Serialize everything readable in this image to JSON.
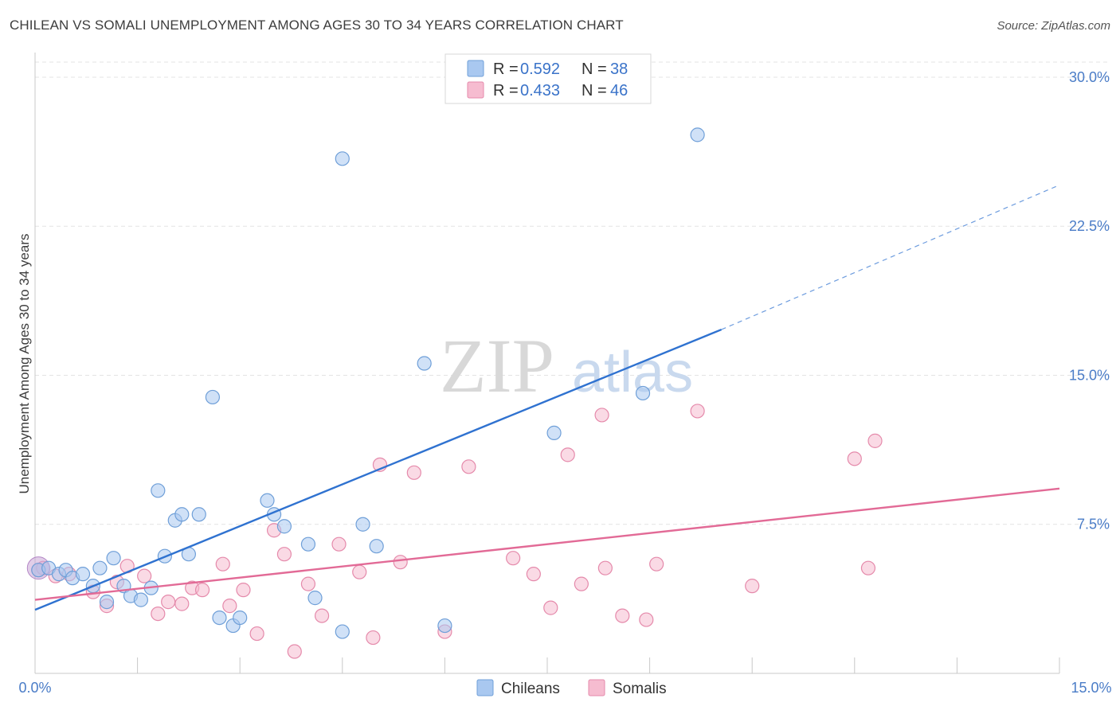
{
  "header": {
    "title": "CHILEAN VS SOMALI UNEMPLOYMENT AMONG AGES 30 TO 34 YEARS CORRELATION CHART",
    "source": "Source: ZipAtlas.com"
  },
  "watermark": {
    "zip": "ZIP",
    "atlas": "atlas"
  },
  "colors": {
    "chileans_fill": "#a9c8f0",
    "chileans_stroke": "#6f9fd8",
    "chileans_line": "#2f72d0",
    "somalis_fill": "#f6bcd0",
    "somalis_stroke": "#e58aab",
    "somalis_line": "#e26a96",
    "tick_text": "#4a7cc7",
    "grid": "#e3e3e3"
  },
  "legend": {
    "rows": [
      {
        "r_label": "R =",
        "r_value": "0.592",
        "n_label": "N =",
        "n_value": "38",
        "series": "chileans"
      },
      {
        "r_label": "R =",
        "r_value": "0.433",
        "n_label": "N =",
        "n_value": "46",
        "series": "somalis"
      }
    ]
  },
  "bottom_legend": {
    "chileans": "Chileans",
    "somalis": "Somalis"
  },
  "chart_data": {
    "type": "scatter",
    "title": "CHILEAN VS SOMALI UNEMPLOYMENT AMONG AGES 30 TO 34 YEARS CORRELATION CHART",
    "xlabel": "",
    "ylabel": "Unemployment Among Ages 30 to 34 years",
    "xlim": [
      0,
      15
    ],
    "ylim": [
      0,
      31
    ],
    "x_tick_labels": {
      "left": "0.0%",
      "right": "15.0%"
    },
    "x_minor_ticks": [
      1.5,
      3,
      4.5,
      6,
      7.5,
      9,
      10.5,
      12,
      13.5,
      15
    ],
    "y_ticks": [
      {
        "value": 7.5,
        "label": "7.5%"
      },
      {
        "value": 15.0,
        "label": "15.0%"
      },
      {
        "value": 22.5,
        "label": "22.5%"
      },
      {
        "value": 30.0,
        "label": "30.0%"
      }
    ],
    "grid": true,
    "series": [
      {
        "name": "Chileans",
        "r": 0.592,
        "n": 38,
        "trend": {
          "x0": 0,
          "y0": 3.2,
          "x1": 10.05,
          "y1": 17.3,
          "dashed_to_x": 14.95,
          "dashed_to_y": 24.5
        },
        "points": [
          [
            0.05,
            5.2
          ],
          [
            0.2,
            5.3
          ],
          [
            0.35,
            5.0
          ],
          [
            0.45,
            5.2
          ],
          [
            0.55,
            4.8
          ],
          [
            0.7,
            5.0
          ],
          [
            0.85,
            4.4
          ],
          [
            0.95,
            5.3
          ],
          [
            1.05,
            3.6
          ],
          [
            1.15,
            5.8
          ],
          [
            1.3,
            4.4
          ],
          [
            1.4,
            3.9
          ],
          [
            1.55,
            3.7
          ],
          [
            1.7,
            4.3
          ],
          [
            1.8,
            9.2
          ],
          [
            1.9,
            5.9
          ],
          [
            2.05,
            7.7
          ],
          [
            2.15,
            8.0
          ],
          [
            2.25,
            6.0
          ],
          [
            2.4,
            8.0
          ],
          [
            2.6,
            13.9
          ],
          [
            2.7,
            2.8
          ],
          [
            2.9,
            2.4
          ],
          [
            3.0,
            2.8
          ],
          [
            3.4,
            8.7
          ],
          [
            3.5,
            8.0
          ],
          [
            3.65,
            7.4
          ],
          [
            4.0,
            6.5
          ],
          [
            4.1,
            3.8
          ],
          [
            4.5,
            2.1
          ],
          [
            4.5,
            25.9
          ],
          [
            4.8,
            7.5
          ],
          [
            5.0,
            6.4
          ],
          [
            5.7,
            15.6
          ],
          [
            6.0,
            2.4
          ],
          [
            7.6,
            12.1
          ],
          [
            8.9,
            14.1
          ],
          [
            9.7,
            27.1
          ]
        ]
      },
      {
        "name": "Somalis",
        "r": 0.433,
        "n": 46,
        "trend": {
          "x0": 0,
          "y0": 3.7,
          "x1": 15.0,
          "y1": 9.3
        },
        "points": [
          [
            0.05,
            5.2
          ],
          [
            0.3,
            4.9
          ],
          [
            0.5,
            5.0
          ],
          [
            0.85,
            4.1
          ],
          [
            1.05,
            3.4
          ],
          [
            1.2,
            4.6
          ],
          [
            1.35,
            5.4
          ],
          [
            1.6,
            4.9
          ],
          [
            1.8,
            3.0
          ],
          [
            1.95,
            3.6
          ],
          [
            2.15,
            3.5
          ],
          [
            2.3,
            4.3
          ],
          [
            2.45,
            4.2
          ],
          [
            2.75,
            5.5
          ],
          [
            2.85,
            3.4
          ],
          [
            3.05,
            4.2
          ],
          [
            3.25,
            2.0
          ],
          [
            3.5,
            7.2
          ],
          [
            3.65,
            6.0
          ],
          [
            3.8,
            1.1
          ],
          [
            4.0,
            4.5
          ],
          [
            4.2,
            2.9
          ],
          [
            4.45,
            6.5
          ],
          [
            4.75,
            5.1
          ],
          [
            4.95,
            1.8
          ],
          [
            5.05,
            10.5
          ],
          [
            5.35,
            5.6
          ],
          [
            5.55,
            10.1
          ],
          [
            6.0,
            2.1
          ],
          [
            6.35,
            10.4
          ],
          [
            7.0,
            5.8
          ],
          [
            7.3,
            5.0
          ],
          [
            7.55,
            3.3
          ],
          [
            7.8,
            11.0
          ],
          [
            8.0,
            4.5
          ],
          [
            8.3,
            13.0
          ],
          [
            8.35,
            5.3
          ],
          [
            8.6,
            2.9
          ],
          [
            8.95,
            2.7
          ],
          [
            9.1,
            5.5
          ],
          [
            9.7,
            13.2
          ],
          [
            10.5,
            4.4
          ],
          [
            12.0,
            10.8
          ],
          [
            12.2,
            5.3
          ],
          [
            12.3,
            11.7
          ],
          [
            0.12,
            5.3
          ]
        ]
      }
    ]
  }
}
